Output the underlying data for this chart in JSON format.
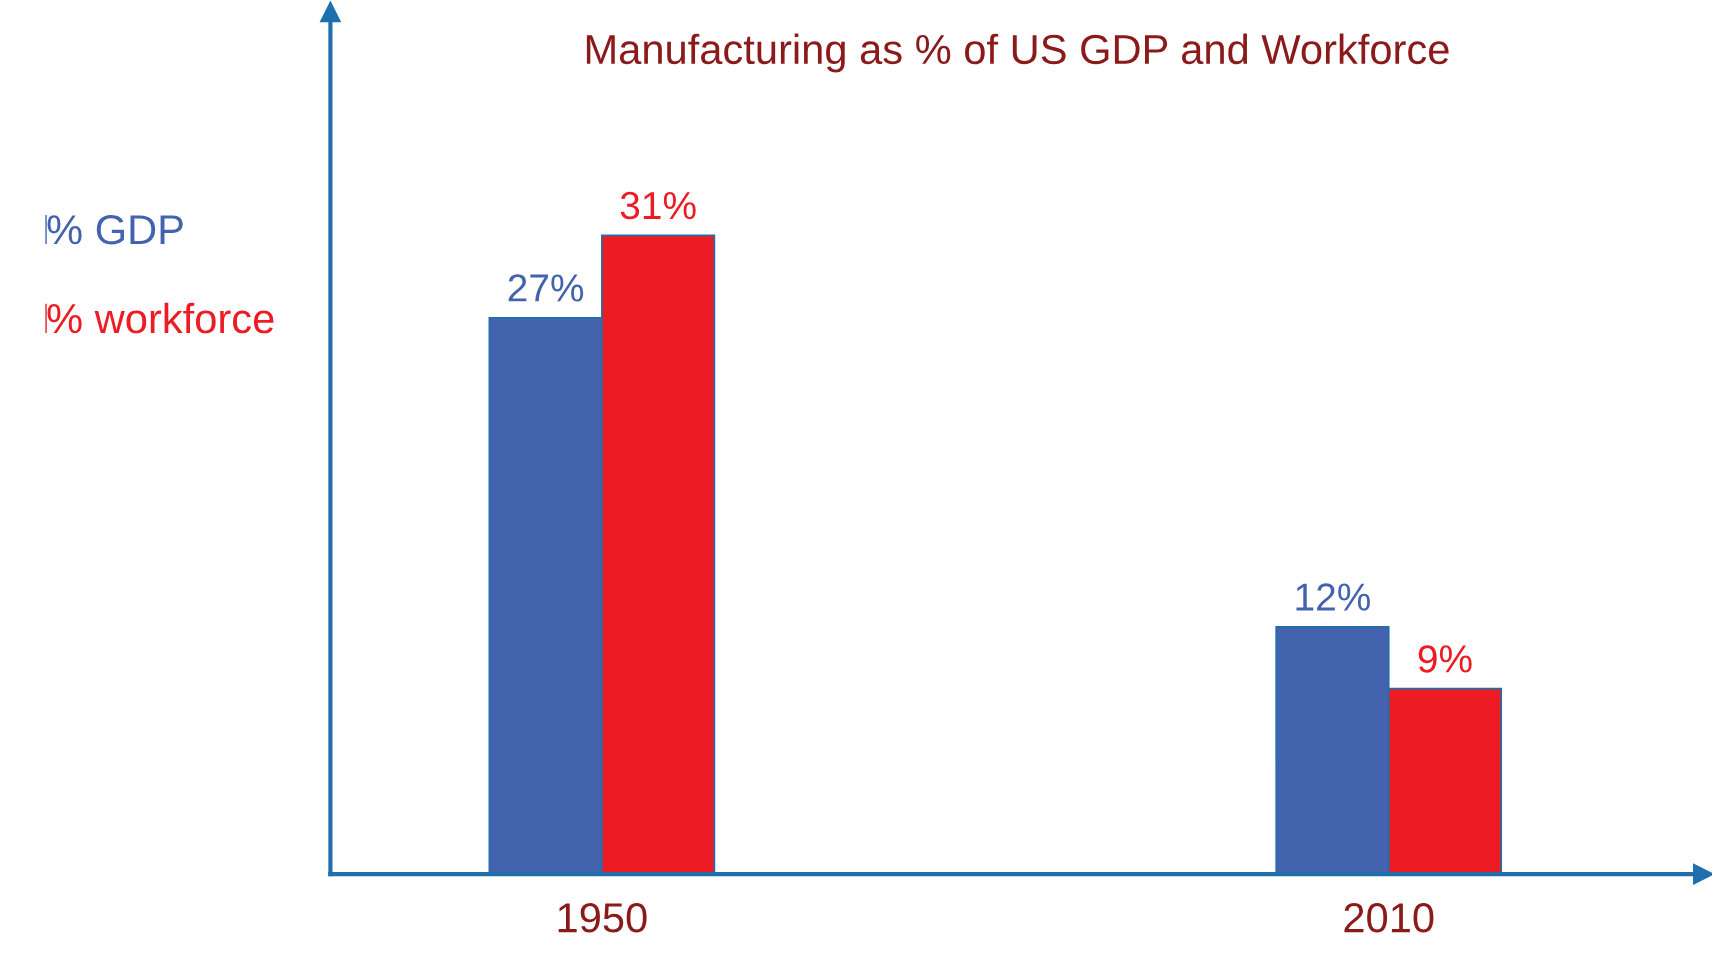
{
  "chart_data": {
    "type": "bar",
    "title": "Manufacturing as % of US GDP and Workforce",
    "categories": [
      "1950",
      "2010"
    ],
    "series": [
      {
        "name": "% GDP",
        "color": "#4363ae",
        "values": [
          27,
          12
        ],
        "value_labels": [
          "27%",
          "12%"
        ]
      },
      {
        "name": "% workforce",
        "color": "#ed1c24",
        "values": [
          31,
          9
        ],
        "value_labels": [
          "31%",
          "9%"
        ]
      }
    ],
    "tick_labels": "x",
    "grid": false,
    "legend": "left"
  }
}
